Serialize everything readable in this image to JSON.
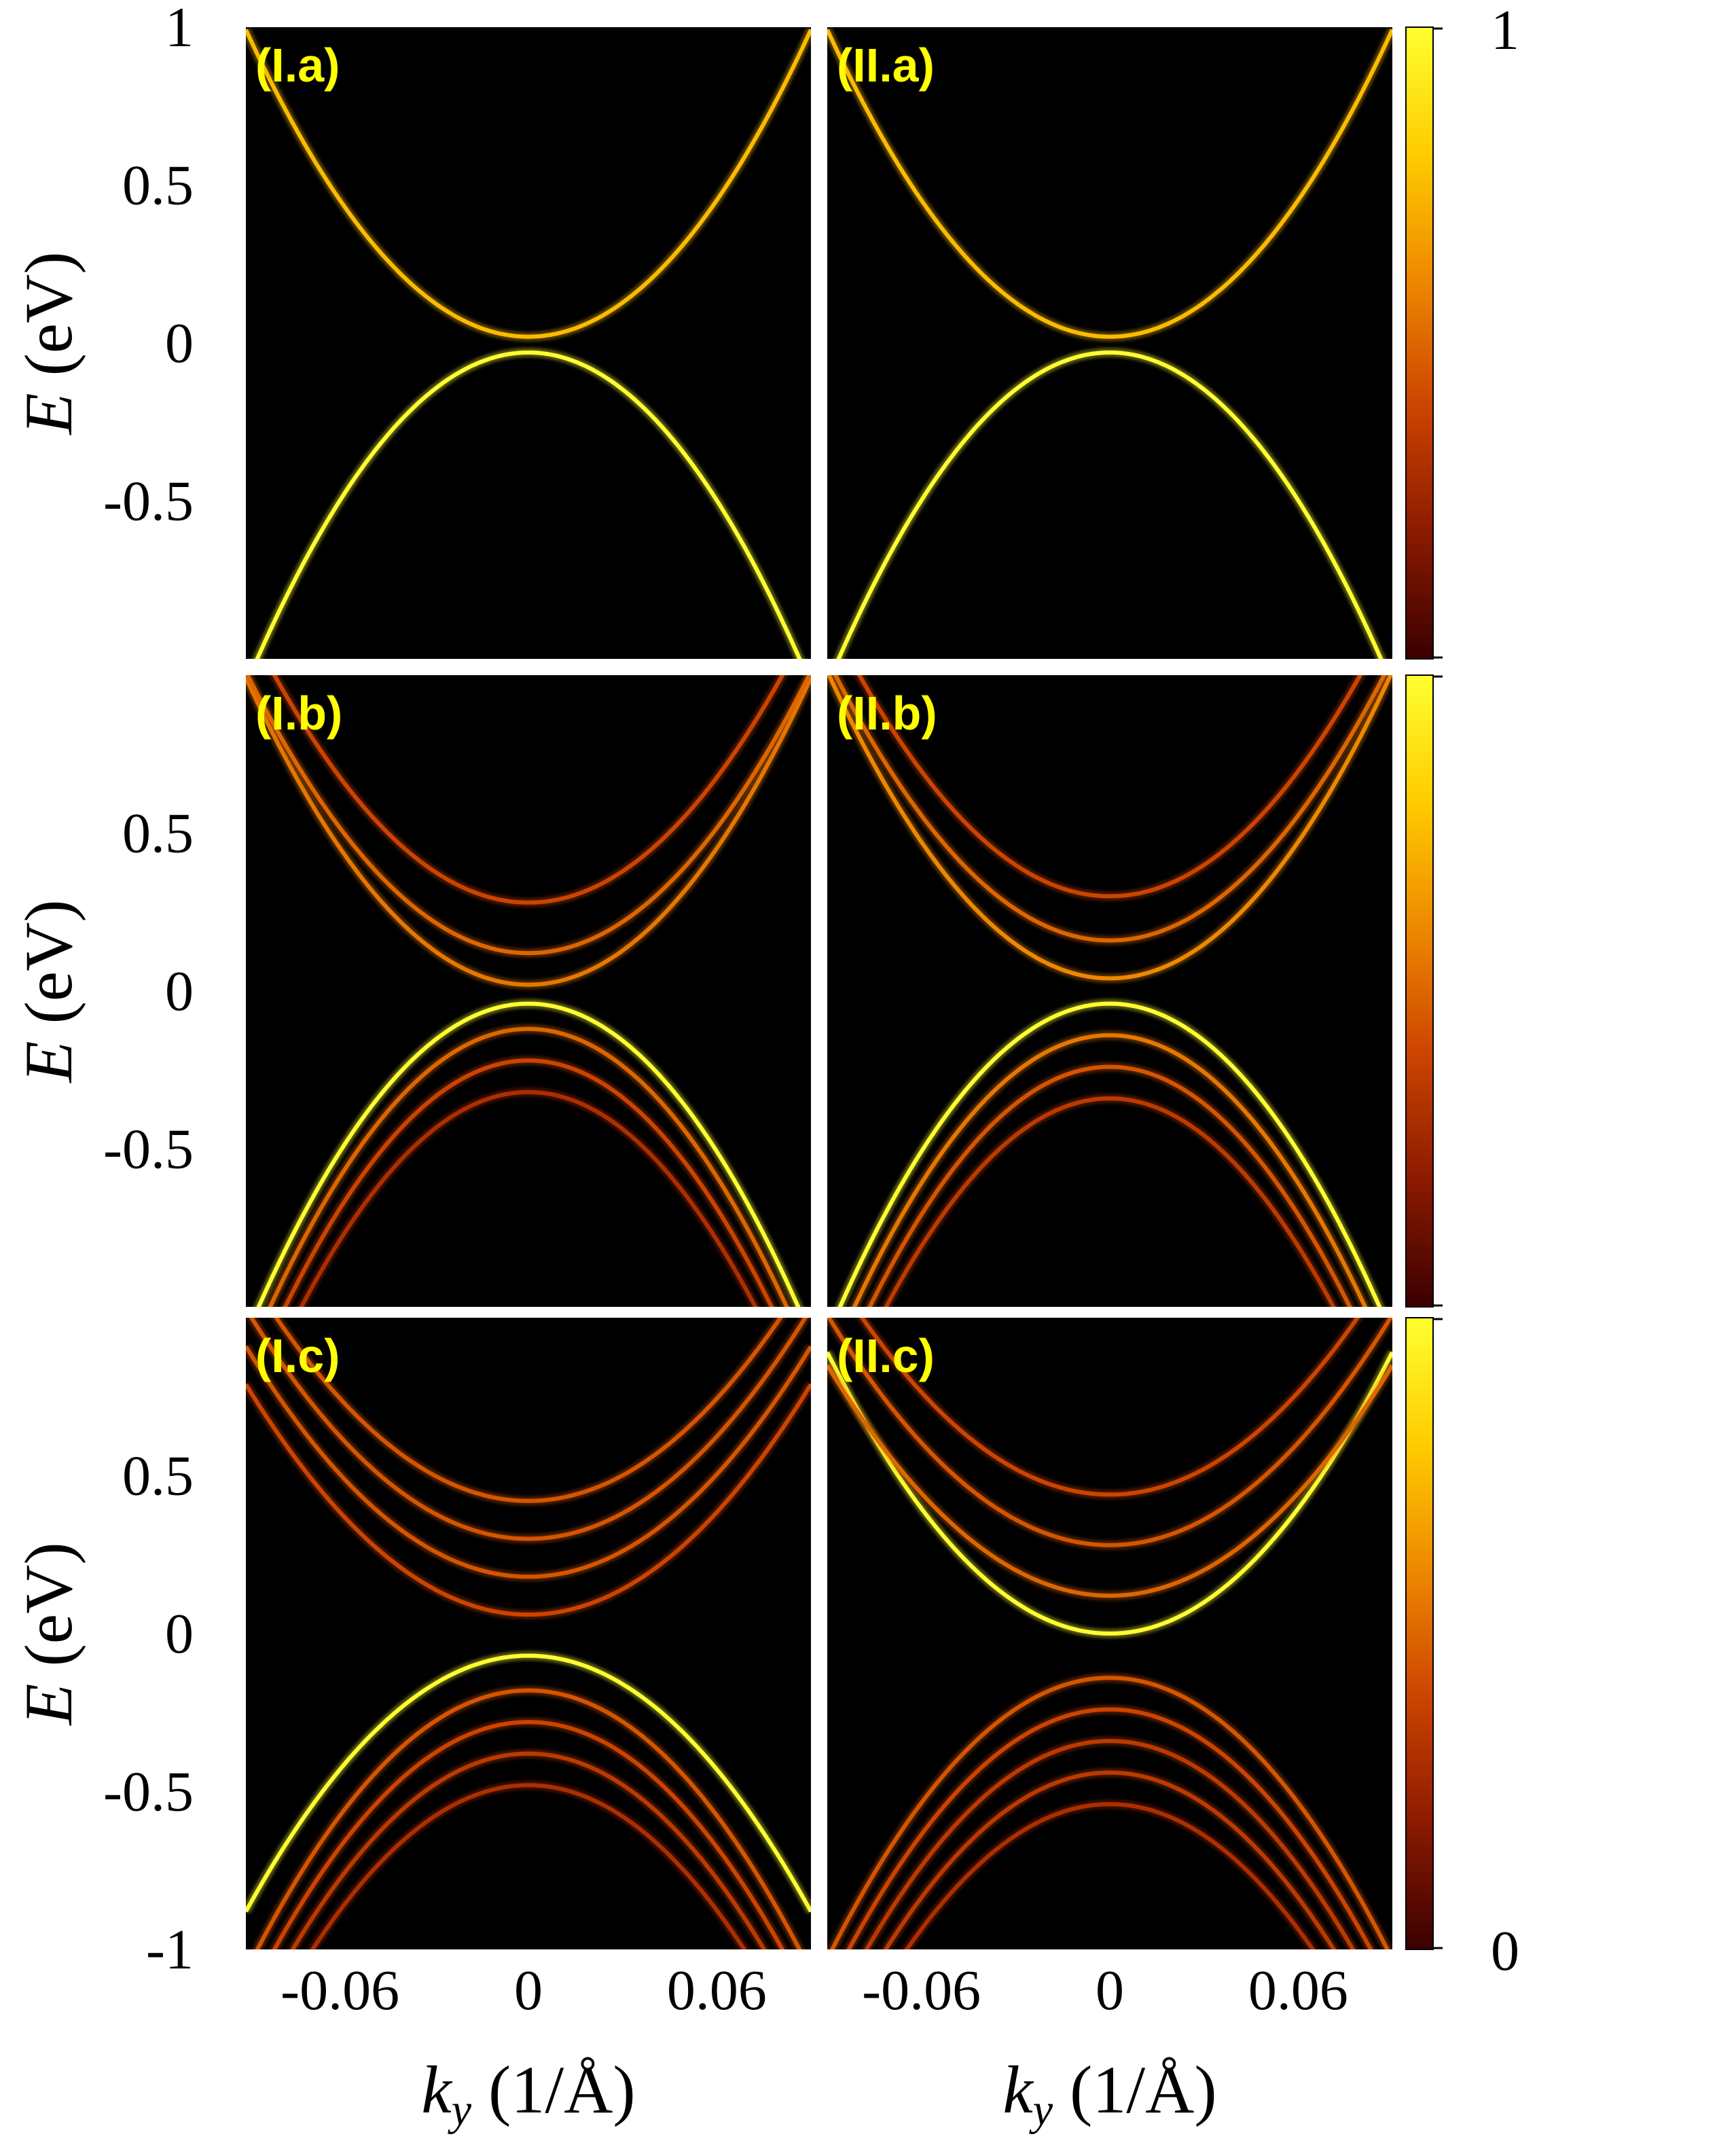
{
  "chart_data": [
    {
      "type": "heatmap",
      "panel_label": "(I.a)",
      "row": 0,
      "col": 0,
      "xlim": [
        -0.09,
        0.09
      ],
      "ylim": [
        -1,
        1
      ],
      "bands": [
        {
          "type": "parabola",
          "apex": 0.02,
          "curvature": 120,
          "brightness": 0.75
        },
        {
          "type": "parabola",
          "apex": -0.03,
          "curvature": -130,
          "brightness": 1.0
        }
      ]
    },
    {
      "type": "heatmap",
      "panel_label": "(II.a)",
      "row": 0,
      "col": 1,
      "xlim": [
        -0.09,
        0.09
      ],
      "ylim": [
        -1,
        1
      ],
      "bands": [
        {
          "type": "parabola",
          "apex": 0.02,
          "curvature": 120,
          "brightness": 0.75
        },
        {
          "type": "parabola",
          "apex": -0.03,
          "curvature": -130,
          "brightness": 1.0
        }
      ]
    },
    {
      "type": "heatmap",
      "panel_label": "(I.b)",
      "row": 1,
      "col": 0,
      "xlim": [
        -0.09,
        0.09
      ],
      "ylim": [
        -1,
        1
      ],
      "bands": [
        {
          "type": "parabola",
          "apex": -0.04,
          "curvature": -130,
          "brightness": 1.0
        },
        {
          "type": "parabola",
          "apex": 0.02,
          "curvature": 120,
          "brightness": 0.55
        },
        {
          "type": "parabola",
          "apex": 0.12,
          "curvature": 110,
          "brightness": 0.5
        },
        {
          "type": "parabola",
          "apex": 0.28,
          "curvature": 110,
          "brightness": 0.4
        },
        {
          "type": "parabola",
          "apex": -0.12,
          "curvature": -130,
          "brightness": 0.5
        },
        {
          "type": "parabola",
          "apex": -0.22,
          "curvature": -130,
          "brightness": 0.4
        },
        {
          "type": "parabola",
          "apex": -0.32,
          "curvature": -130,
          "brightness": 0.3
        }
      ]
    },
    {
      "type": "heatmap",
      "panel_label": "(II.b)",
      "row": 1,
      "col": 1,
      "xlim": [
        -0.09,
        0.09
      ],
      "ylim": [
        -1,
        1
      ],
      "bands": [
        {
          "type": "parabola",
          "apex": -0.04,
          "curvature": -130,
          "brightness": 1.0
        },
        {
          "type": "parabola",
          "apex": 0.04,
          "curvature": 120,
          "brightness": 0.6
        },
        {
          "type": "parabola",
          "apex": 0.16,
          "curvature": 110,
          "brightness": 0.5
        },
        {
          "type": "parabola",
          "apex": 0.3,
          "curvature": 110,
          "brightness": 0.4
        },
        {
          "type": "parabola",
          "apex": -0.14,
          "curvature": -130,
          "brightness": 0.55
        },
        {
          "type": "parabola",
          "apex": -0.24,
          "curvature": -130,
          "brightness": 0.45
        },
        {
          "type": "parabola",
          "apex": -0.34,
          "curvature": -130,
          "brightness": 0.35
        }
      ]
    },
    {
      "type": "heatmap",
      "panel_label": "(I.c)",
      "row": 2,
      "col": 0,
      "xlim": [
        -0.09,
        0.09
      ],
      "ylim": [
        -1,
        1
      ],
      "bands": [
        {
          "type": "parabola",
          "apex": -0.07,
          "curvature": -100,
          "brightness": 1.0
        },
        {
          "type": "parabola",
          "apex": 0.42,
          "curvature": 90,
          "brightness": 0.45
        },
        {
          "type": "parabola",
          "apex": 0.3,
          "curvature": 90,
          "brightness": 0.45
        },
        {
          "type": "parabola",
          "apex": 0.18,
          "curvature": 90,
          "brightness": 0.45
        },
        {
          "type": "parabola",
          "apex": 0.06,
          "curvature": 90,
          "brightness": 0.4
        },
        {
          "type": "parabola",
          "apex": -0.18,
          "curvature": -110,
          "brightness": 0.45
        },
        {
          "type": "parabola",
          "apex": -0.28,
          "curvature": -110,
          "brightness": 0.4
        },
        {
          "type": "parabola",
          "apex": -0.38,
          "curvature": -110,
          "brightness": 0.35
        },
        {
          "type": "parabola",
          "apex": -0.48,
          "curvature": -110,
          "brightness": 0.3
        }
      ]
    },
    {
      "type": "heatmap",
      "panel_label": "(II.c)",
      "row": 2,
      "col": 1,
      "xlim": [
        -0.09,
        0.09
      ],
      "ylim": [
        -1,
        1
      ],
      "bands": [
        {
          "type": "parabola",
          "apex": 0.0,
          "curvature": 110,
          "brightness": 1.0
        },
        {
          "type": "parabola",
          "apex": 0.12,
          "curvature": 90,
          "brightness": 0.5
        },
        {
          "type": "parabola",
          "apex": 0.28,
          "curvature": 90,
          "brightness": 0.45
        },
        {
          "type": "parabola",
          "apex": 0.44,
          "curvature": 90,
          "brightness": 0.4
        },
        {
          "type": "parabola",
          "apex": -0.14,
          "curvature": -110,
          "brightness": 0.45
        },
        {
          "type": "parabola",
          "apex": -0.24,
          "curvature": -110,
          "brightness": 0.4
        },
        {
          "type": "parabola",
          "apex": -0.34,
          "curvature": -110,
          "brightness": 0.35
        },
        {
          "type": "parabola",
          "apex": -0.44,
          "curvature": -110,
          "brightness": 0.35
        },
        {
          "type": "parabola",
          "apex": -0.54,
          "curvature": -110,
          "brightness": 0.3
        }
      ]
    }
  ],
  "axes": {
    "y_ticks_top": [
      {
        "value": 1,
        "label": "1"
      },
      {
        "value": 0.5,
        "label": "0.5"
      },
      {
        "value": 0,
        "label": "0"
      },
      {
        "value": -0.5,
        "label": "-0.5"
      }
    ],
    "y_ticks_mid": [
      {
        "value": 0.5,
        "label": "0.5"
      },
      {
        "value": 0,
        "label": "0"
      },
      {
        "value": -0.5,
        "label": "-0.5"
      }
    ],
    "y_ticks_bottom": [
      {
        "value": 0.5,
        "label": "0.5"
      },
      {
        "value": 0,
        "label": "0"
      },
      {
        "value": -0.5,
        "label": "-0.5"
      },
      {
        "value": -1,
        "label": "-1"
      }
    ],
    "x_ticks": [
      {
        "value": -0.06,
        "label": "-0.06"
      },
      {
        "value": 0,
        "label": "0"
      },
      {
        "value": 0.06,
        "label": "0.06"
      }
    ],
    "ylabel_italic": "E",
    "ylabel_unit": "(eV)",
    "xlabel_italic": "k",
    "xlabel_sub": "y",
    "xlabel_unit": "(1/Å)"
  },
  "colorbar": {
    "min_label": "0",
    "max_label": "1",
    "colors": [
      "#3a0000",
      "#8b1a00",
      "#cc4400",
      "#ee8800",
      "#ffcc00",
      "#ffff30"
    ]
  },
  "colors": {
    "panel_background": "#000000",
    "label_color": "#ffff00"
  }
}
